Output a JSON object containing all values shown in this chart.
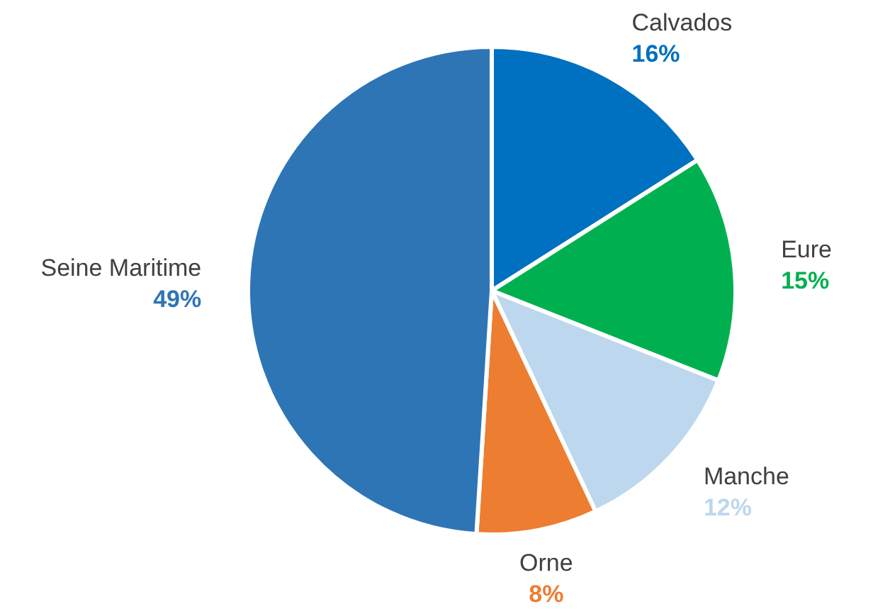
{
  "chart_data": {
    "type": "pie",
    "categories": [
      "Calvados",
      "Eure",
      "Manche",
      "Orne",
      "Seine Maritime"
    ],
    "values": [
      16,
      15,
      12,
      8,
      49
    ],
    "colors": [
      "#0070c0",
      "#00b050",
      "#bdd7ee",
      "#ed7d31",
      "#2e75b6"
    ],
    "value_labels": [
      "16%",
      "15%",
      "12%",
      "8%",
      "49%"
    ]
  }
}
